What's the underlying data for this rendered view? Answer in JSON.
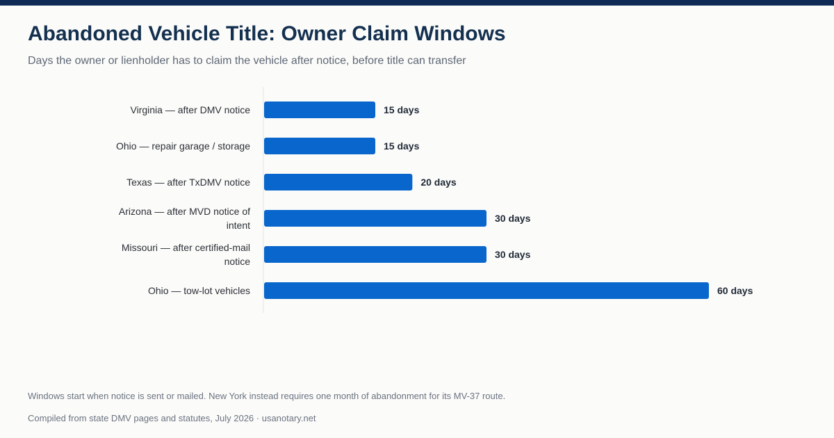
{
  "header": {
    "title": "Abandoned Vehicle Title: Owner Claim Windows",
    "subtitle": "Days the owner or lienholder has to claim the vehicle after notice, before title can transfer"
  },
  "chart_data": {
    "type": "bar",
    "orientation": "horizontal",
    "categories": [
      "Virginia — after DMV notice",
      "Ohio — repair garage / storage",
      "Texas — after TxDMV notice",
      "Arizona — after MVD notice of intent",
      "Missouri — after certified-mail notice",
      "Ohio — tow-lot vehicles"
    ],
    "values": [
      15,
      15,
      20,
      30,
      30,
      60
    ],
    "value_labels": [
      "15 days",
      "15 days",
      "20 days",
      "30 days",
      "30 days",
      "60 days"
    ],
    "unit": "days",
    "xlim": [
      0,
      60
    ],
    "grid": false,
    "legend": "none",
    "bar_color": "#0866cc"
  },
  "footer": {
    "note": "Windows start when notice is sent or mailed. New York instead requires one month of abandonment for its MV-37 route.",
    "source": "Compiled from state DMV pages and statutes, July 2026 · usanotary.net"
  },
  "colors": {
    "accent_bar": "#0f2b55",
    "title": "#14304f",
    "bar": "#0866cc",
    "label": "#2b2f36",
    "value_label": "#1f2937"
  }
}
